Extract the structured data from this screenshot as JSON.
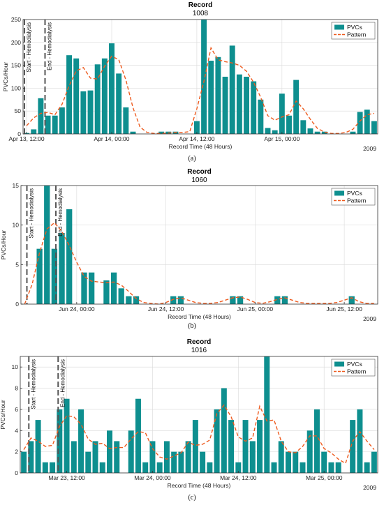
{
  "colors": {
    "bar": "#0e8f8f",
    "pattern": "#ee5b1f",
    "grid": "#d9d9d9",
    "marker": "#555555"
  },
  "chart_data": [
    {
      "type": "bar",
      "panel_label": "(a)",
      "title": "Record",
      "subtitle": "1008",
      "ylabel": "PVCs/Hour",
      "xlabel": "Record Time (48 Hours)",
      "year": "2009",
      "ylim": [
        0,
        250
      ],
      "yticks": [
        0,
        50,
        100,
        150,
        200,
        250
      ],
      "xticks": [
        {
          "hour": 0.5,
          "label": "Apr 13, 12:00"
        },
        {
          "hour": 12.5,
          "label": "Apr 14, 00:00"
        },
        {
          "hour": 24.5,
          "label": "Apr 14, 12:00"
        },
        {
          "hour": 36.5,
          "label": "Apr 15, 00:00"
        }
      ],
      "legend": [
        "PVCs",
        "Pattern"
      ],
      "legend_position": "top-right",
      "markers": [
        {
          "hour": 0.2,
          "label": "Start - Hemodialysis"
        },
        {
          "hour": 3.1,
          "label": "End - Hemodialysis"
        }
      ],
      "grid": true,
      "series": [
        {
          "name": "PVCs",
          "values": [
            2,
            10,
            78,
            40,
            40,
            58,
            172,
            165,
            93,
            95,
            152,
            165,
            198,
            132,
            58,
            5,
            0,
            0,
            0,
            5,
            5,
            5,
            0,
            0,
            28,
            252,
            160,
            168,
            125,
            193,
            130,
            125,
            115,
            75,
            13,
            8,
            88,
            40,
            118,
            30,
            12,
            5,
            5,
            0,
            0,
            0,
            5,
            48,
            53,
            28
          ]
        },
        {
          "name": "Pattern",
          "values": [
            18,
            35,
            45,
            47,
            42,
            65,
            105,
            138,
            145,
            122,
            120,
            148,
            170,
            162,
            118,
            57,
            15,
            3,
            1,
            1,
            2,
            3,
            3,
            5,
            55,
            115,
            188,
            162,
            158,
            155,
            150,
            137,
            113,
            80,
            40,
            30,
            37,
            42,
            72,
            55,
            32,
            12,
            4,
            1,
            1,
            3,
            10,
            28,
            42,
            45
          ]
        }
      ]
    },
    {
      "type": "bar",
      "panel_label": "(b)",
      "title": "Record",
      "subtitle": "1060",
      "ylabel": "PVCs/Hour",
      "xlabel": "Record Time (48 Hours)",
      "year": "2009",
      "ylim": [
        0,
        15
      ],
      "yticks": [
        0,
        5,
        10,
        15
      ],
      "xticks": [
        {
          "hour": 7.5,
          "label": "Jun 24, 00:00"
        },
        {
          "hour": 19.5,
          "label": "Jun 24, 12:00"
        },
        {
          "hour": 31.5,
          "label": "Jun 25, 00:00"
        },
        {
          "hour": 43.5,
          "label": "Jun 25, 12:00"
        }
      ],
      "legend": [
        "PVCs",
        "Pattern"
      ],
      "legend_position": "top-right",
      "markers": [
        {
          "hour": 0.8,
          "label": "Start - Hemodialysis"
        },
        {
          "hour": 4.7,
          "label": "End - Hemodialysis"
        }
      ],
      "grid": true,
      "series": [
        {
          "name": "PVCs",
          "values": [
            0,
            0,
            7,
            15,
            7,
            9,
            12,
            0,
            4,
            4,
            0,
            3,
            4,
            2,
            1,
            1,
            0,
            0,
            0,
            0,
            1,
            1,
            0,
            0,
            0,
            0,
            0,
            0,
            1,
            1,
            0,
            0,
            0,
            0,
            1,
            1,
            0,
            0,
            0,
            0,
            0,
            0,
            0,
            0,
            1,
            0,
            0,
            0
          ]
        },
        {
          "name": "Pattern",
          "values": [
            0,
            2.5,
            6.5,
            9.5,
            10.3,
            9.2,
            7.4,
            5.3,
            3.5,
            2.9,
            2.8,
            2.7,
            2.8,
            2.4,
            1.6,
            0.7,
            0.2,
            0.1,
            0,
            0.2,
            0.6,
            0.8,
            0.5,
            0.2,
            0.1,
            0.1,
            0.2,
            0.5,
            0.8,
            0.9,
            0.6,
            0.2,
            0.1,
            0.3,
            0.6,
            0.8,
            0.5,
            0.2,
            0.1,
            0.1,
            0.1,
            0.1,
            0.2,
            0.5,
            0.8,
            0.3,
            0.1,
            0.1
          ]
        }
      ]
    },
    {
      "type": "bar",
      "panel_label": "(c)",
      "title": "Record",
      "subtitle": "1016",
      "ylabel": "PVCs/Hour",
      "xlabel": "Record Time (48 Hours)",
      "year": "2009",
      "ylim": [
        0,
        11
      ],
      "yticks": [
        0,
        2,
        4,
        6,
        8,
        10
      ],
      "xticks": [
        {
          "hour": 6.5,
          "label": "Mar 23, 12:00"
        },
        {
          "hour": 18.5,
          "label": "Mar 24, 00:00"
        },
        {
          "hour": 30.5,
          "label": "Mar 24, 12:00"
        },
        {
          "hour": 42.5,
          "label": "Mar 25, 00:00"
        }
      ],
      "legend": [
        "PVCs",
        "Pattern"
      ],
      "legend_position": "top-right",
      "markers": [
        {
          "hour": 1.2,
          "label": "Start - Hemodialysis"
        },
        {
          "hour": 5.3,
          "label": "End - Hemodialysis"
        }
      ],
      "grid": true,
      "series": [
        {
          "name": "PVCs",
          "values": [
            2,
            3,
            5,
            1,
            1,
            6,
            7,
            3,
            6,
            2,
            3,
            1,
            4,
            3,
            0,
            4,
            7,
            1,
            3,
            1,
            3,
            2,
            2,
            3,
            5,
            2,
            1,
            6,
            8,
            5,
            1,
            5,
            3,
            5,
            11,
            1,
            3,
            2,
            2,
            1,
            4,
            6,
            2,
            1,
            1,
            0,
            5,
            6,
            1,
            2
          ]
        },
        {
          "name": "Pattern",
          "values": [
            2.2,
            3.3,
            3.0,
            2.5,
            2.6,
            4.4,
            5.4,
            5.3,
            4.6,
            3.2,
            2.7,
            2.8,
            2.3,
            2.4,
            2.4,
            3.2,
            3.9,
            3.8,
            2.3,
            1.5,
            1.3,
            1.6,
            1.9,
            2.9,
            2.6,
            2.7,
            3.1,
            5.6,
            6.4,
            5.3,
            3.4,
            3.0,
            3.3,
            6.3,
            4.9,
            5.0,
            3.0,
            2.0,
            1.9,
            2.5,
            3.5,
            3.5,
            2.3,
            1.9,
            1.3,
            0.9,
            3.0,
            3.9,
            3.0,
            2.2
          ]
        }
      ]
    }
  ]
}
